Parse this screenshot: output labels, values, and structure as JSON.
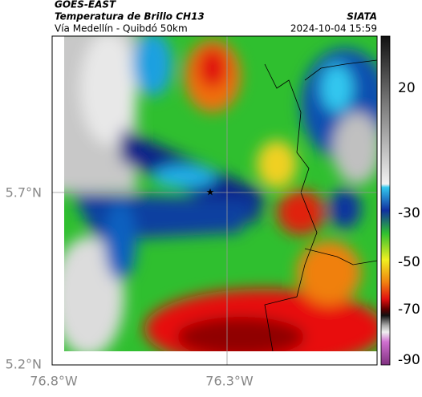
{
  "header": {
    "title": "GOES-EAST",
    "subtitle": "Temperatura de Brillo CH13",
    "location": "Vía Medellín - Quibdó 50km",
    "source": "SIATA",
    "datetime": "2024-10-04 15:59"
  },
  "axes": {
    "y_labels": [
      "5.7°N",
      "5.2°N"
    ],
    "x_labels": [
      "76.8°W",
      "76.3°W"
    ]
  },
  "colorbar": {
    "ticks": [
      20,
      -30,
      -50,
      -70,
      -90
    ]
  }
}
